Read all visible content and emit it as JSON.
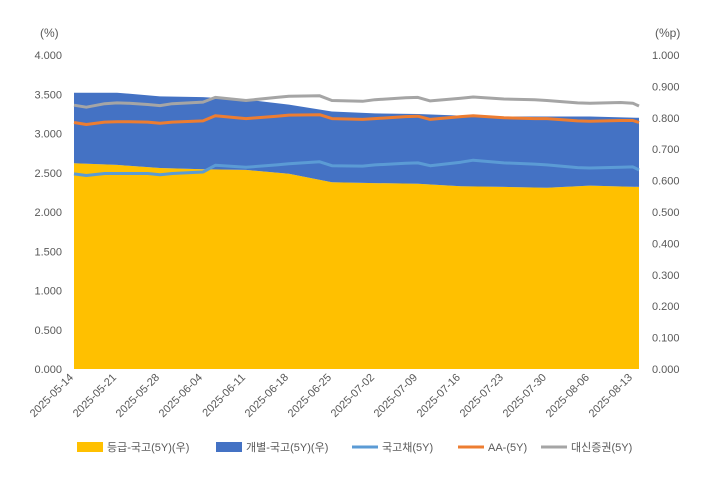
{
  "chart_data": {
    "type": "area",
    "units": {
      "left": "(%)",
      "right": "(%p)"
    },
    "left_axis": {
      "min": 0,
      "max": 4,
      "step": 0.5,
      "labels": [
        "0.000",
        "0.500",
        "1.000",
        "1.500",
        "2.000",
        "2.500",
        "3.000",
        "3.500",
        "4.000"
      ]
    },
    "right_axis": {
      "min": 0,
      "max": 1,
      "step": 0.1,
      "labels": [
        "0.000",
        "0.100",
        "0.200",
        "0.300",
        "0.400",
        "0.500",
        "0.600",
        "0.700",
        "0.800",
        "0.900",
        "1.000"
      ]
    },
    "x_start": "2025-05-14",
    "x_end": "2025-08-14",
    "x_tick_labels": [
      "2025-05-14",
      "2025-05-21",
      "2025-05-28",
      "2025-06-04",
      "2025-06-11",
      "2025-06-18",
      "2025-06-25",
      "2025-07-02",
      "2025-07-09",
      "2025-07-16",
      "2025-07-23",
      "2025-07-30",
      "2025-08-06",
      "2025-08-13"
    ],
    "series": [
      {
        "name": "등급-국고(5Y)(우)",
        "kind": "area",
        "axis": "right",
        "stack": true,
        "color": "#FFC000",
        "points": [
          [
            "2025-05-14",
            0.655
          ],
          [
            "2025-05-21",
            0.65
          ],
          [
            "2025-05-28",
            0.64
          ],
          [
            "2025-06-04",
            0.636
          ],
          [
            "2025-06-11",
            0.634
          ],
          [
            "2025-06-18",
            0.622
          ],
          [
            "2025-06-25",
            0.595
          ],
          [
            "2025-07-02",
            0.592
          ],
          [
            "2025-07-09",
            0.59
          ],
          [
            "2025-07-16",
            0.582
          ],
          [
            "2025-07-23",
            0.58
          ],
          [
            "2025-07-30",
            0.577
          ],
          [
            "2025-08-06",
            0.584
          ],
          [
            "2025-08-14",
            0.58
          ]
        ]
      },
      {
        "name": "개별-국고(5Y)(우)",
        "kind": "area",
        "axis": "right",
        "stack": true,
        "color": "#4472C4",
        "points": [
          [
            "2025-05-14",
            0.225
          ],
          [
            "2025-05-21",
            0.23
          ],
          [
            "2025-05-28",
            0.228
          ],
          [
            "2025-06-04",
            0.23
          ],
          [
            "2025-06-11",
            0.224
          ],
          [
            "2025-06-18",
            0.22
          ],
          [
            "2025-06-25",
            0.225
          ],
          [
            "2025-07-02",
            0.222
          ],
          [
            "2025-07-09",
            0.222
          ],
          [
            "2025-07-16",
            0.225
          ],
          [
            "2025-07-23",
            0.224
          ],
          [
            "2025-07-30",
            0.227
          ],
          [
            "2025-08-06",
            0.22
          ],
          [
            "2025-08-14",
            0.22
          ]
        ]
      },
      {
        "name": "국고채(5Y)",
        "kind": "line",
        "axis": "left",
        "color": "#5B9BD5",
        "points": [
          [
            "2025-05-14",
            2.485
          ],
          [
            "2025-05-16",
            2.465
          ],
          [
            "2025-05-19",
            2.49
          ],
          [
            "2025-05-21",
            2.49
          ],
          [
            "2025-05-23",
            2.49
          ],
          [
            "2025-05-26",
            2.49
          ],
          [
            "2025-05-28",
            2.475
          ],
          [
            "2025-05-30",
            2.49
          ],
          [
            "2025-06-04",
            2.51
          ],
          [
            "2025-06-06",
            2.595
          ],
          [
            "2025-06-11",
            2.57
          ],
          [
            "2025-06-16",
            2.6
          ],
          [
            "2025-06-18",
            2.615
          ],
          [
            "2025-06-23",
            2.64
          ],
          [
            "2025-06-25",
            2.59
          ],
          [
            "2025-06-30",
            2.585
          ],
          [
            "2025-07-02",
            2.6
          ],
          [
            "2025-07-07",
            2.62
          ],
          [
            "2025-07-09",
            2.625
          ],
          [
            "2025-07-11",
            2.59
          ],
          [
            "2025-07-16",
            2.635
          ],
          [
            "2025-07-18",
            2.66
          ],
          [
            "2025-07-23",
            2.625
          ],
          [
            "2025-07-28",
            2.61
          ],
          [
            "2025-07-30",
            2.6
          ],
          [
            "2025-08-04",
            2.565
          ],
          [
            "2025-08-06",
            2.56
          ],
          [
            "2025-08-11",
            2.57
          ],
          [
            "2025-08-13",
            2.575
          ],
          [
            "2025-08-14",
            2.535
          ]
        ]
      },
      {
        "name": "AA-(5Y)",
        "kind": "line",
        "axis": "left",
        "color": "#ED7D31",
        "points": [
          [
            "2025-05-14",
            3.14
          ],
          [
            "2025-05-16",
            3.115
          ],
          [
            "2025-05-19",
            3.145
          ],
          [
            "2025-05-21",
            3.15
          ],
          [
            "2025-05-23",
            3.15
          ],
          [
            "2025-05-26",
            3.145
          ],
          [
            "2025-05-28",
            3.13
          ],
          [
            "2025-05-30",
            3.145
          ],
          [
            "2025-06-04",
            3.16
          ],
          [
            "2025-06-06",
            3.225
          ],
          [
            "2025-06-11",
            3.19
          ],
          [
            "2025-06-16",
            3.22
          ],
          [
            "2025-06-18",
            3.235
          ],
          [
            "2025-06-23",
            3.24
          ],
          [
            "2025-06-25",
            3.19
          ],
          [
            "2025-06-30",
            3.18
          ],
          [
            "2025-07-02",
            3.19
          ],
          [
            "2025-07-07",
            3.215
          ],
          [
            "2025-07-09",
            3.22
          ],
          [
            "2025-07-11",
            3.18
          ],
          [
            "2025-07-16",
            3.215
          ],
          [
            "2025-07-18",
            3.225
          ],
          [
            "2025-07-23",
            3.2
          ],
          [
            "2025-07-28",
            3.19
          ],
          [
            "2025-07-30",
            3.19
          ],
          [
            "2025-08-04",
            3.16
          ],
          [
            "2025-08-06",
            3.155
          ],
          [
            "2025-08-11",
            3.165
          ],
          [
            "2025-08-13",
            3.165
          ],
          [
            "2025-08-14",
            3.14
          ]
        ]
      },
      {
        "name": "대신증권(5Y)",
        "kind": "line",
        "axis": "left",
        "color": "#A5A5A5",
        "points": [
          [
            "2025-05-14",
            3.36
          ],
          [
            "2025-05-16",
            3.335
          ],
          [
            "2025-05-19",
            3.38
          ],
          [
            "2025-05-21",
            3.39
          ],
          [
            "2025-05-23",
            3.385
          ],
          [
            "2025-05-26",
            3.37
          ],
          [
            "2025-05-28",
            3.355
          ],
          [
            "2025-05-30",
            3.38
          ],
          [
            "2025-06-04",
            3.4
          ],
          [
            "2025-06-06",
            3.46
          ],
          [
            "2025-06-11",
            3.42
          ],
          [
            "2025-06-16",
            3.46
          ],
          [
            "2025-06-18",
            3.475
          ],
          [
            "2025-06-23",
            3.48
          ],
          [
            "2025-06-25",
            3.42
          ],
          [
            "2025-06-30",
            3.41
          ],
          [
            "2025-07-02",
            3.43
          ],
          [
            "2025-07-07",
            3.455
          ],
          [
            "2025-07-09",
            3.46
          ],
          [
            "2025-07-11",
            3.415
          ],
          [
            "2025-07-16",
            3.45
          ],
          [
            "2025-07-18",
            3.465
          ],
          [
            "2025-07-23",
            3.44
          ],
          [
            "2025-07-28",
            3.43
          ],
          [
            "2025-07-30",
            3.42
          ],
          [
            "2025-08-04",
            3.39
          ],
          [
            "2025-08-06",
            3.385
          ],
          [
            "2025-08-11",
            3.395
          ],
          [
            "2025-08-13",
            3.385
          ],
          [
            "2025-08-14",
            3.35
          ]
        ]
      }
    ],
    "legend_position": "bottom",
    "grid": false
  }
}
